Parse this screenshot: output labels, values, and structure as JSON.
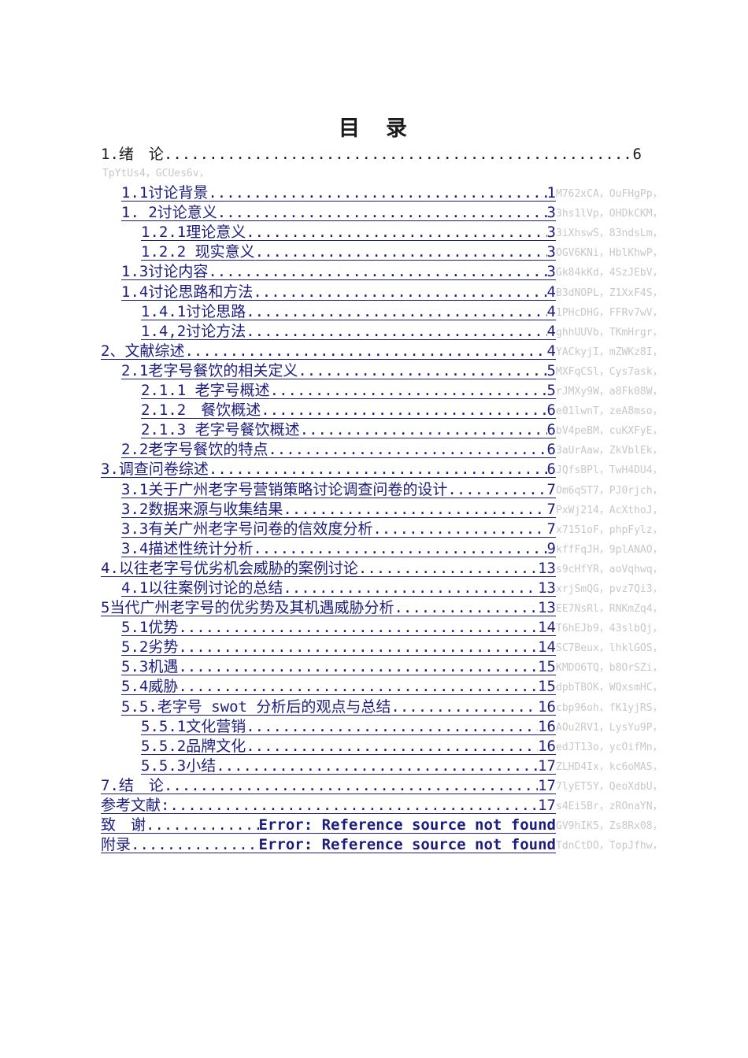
{
  "page": {
    "title": "目　录",
    "stray_text": "TpYtUs4，GCUes6v，",
    "colors": {
      "background": "#ffffff",
      "heading_text": "#1b1b1b",
      "toc_link": "#1c1c7e",
      "watermark_text": "#c8c8c8"
    }
  },
  "toc": {
    "top_entry": {
      "text": "1.绪　论",
      "page": "6"
    },
    "entries": [
      {
        "level": 2,
        "text": "1.1讨论背景",
        "page": "1",
        "gray": "M762xCA，OuFHgPp，"
      },
      {
        "level": 2,
        "text": "1. 2讨论意义",
        "page": "3",
        "gray": "3hs1lVp，OHDkCKM，"
      },
      {
        "level": 3,
        "text": "1.2.1理论意义",
        "page": "3",
        "gray": "3iXhswS，83ndsLm，"
      },
      {
        "level": 3,
        "text": "1.2.2 现实意义",
        "page": "3",
        "gray": "OGV6KNi，HblKhwP，"
      },
      {
        "level": 2,
        "text": "1.3讨论内容",
        "page": "3",
        "gray": "Gk84kKd，4SzJEbV，"
      },
      {
        "level": 2,
        "text": "1.4讨论思路和方法",
        "page": "4",
        "gray": "B3dNOPL，Z1XxF4S，"
      },
      {
        "level": 3,
        "text": "1.4.1讨论思路",
        "page": "4",
        "gray": "1PHcDHG，FFRv7wV，"
      },
      {
        "level": 3,
        "text": "1.4,2讨论方法",
        "page": "4",
        "gray": "ghhUUVb，TKmHrgr，"
      },
      {
        "level": 1,
        "text": "2、文献综述",
        "page": "4",
        "gray": "YACkyjI，mZWKz8I，"
      },
      {
        "level": 2,
        "text": "2.1老字号餐饮的相关定义",
        "page": "5",
        "gray": "MXFqCSl，Cys7ask，"
      },
      {
        "level": 3,
        "text": "2.1.1 老字号概述",
        "page": "5",
        "gray": "rJMXy9W，a8Fk08W，"
      },
      {
        "level": 3,
        "text": "2.1.2　餐饮概述",
        "page": "6",
        "gray": "e01lwnT，zeA8mso，"
      },
      {
        "level": 3,
        "text": "2.1.3 老字号餐饮概述",
        "page": "6",
        "gray": "bV4peBM，cuKXFyE，"
      },
      {
        "level": 2,
        "text": "2.2老字号餐饮的特点",
        "page": "6",
        "gray": "3aUrAaw，ZkVblEk，"
      },
      {
        "level": 1,
        "text": "3.调查问卷综述",
        "page": "6",
        "gray": "JQfsBPl，TwH4DU4，"
      },
      {
        "level": 2,
        "text": "3.1关于广州老字号营销策略讨论调查问卷的设计",
        "page": "7",
        "gray": "Om6qST7，PJ0rjch，"
      },
      {
        "level": 2,
        "text": "3.2数据来源与收集结果",
        "page": "7",
        "gray": "PxWj214，AcXthoJ，"
      },
      {
        "level": 2,
        "text": "3.3有关广州老字号问卷的信效度分析",
        "page": "7",
        "gray": "x7151oF，phpFylz，"
      },
      {
        "level": 2,
        "text": "3.4描述性统计分析",
        "page": "9",
        "gray": "kffFqJH，9plANAO，"
      },
      {
        "level": 1,
        "text": "4.以往老字号优劣机会威胁的案例讨论",
        "page": "13",
        "gray": "s9cHfYR，aoVqhwq，"
      },
      {
        "level": 2,
        "text": "4.1以往案例讨论的总结",
        "page": "13",
        "gray": "xrjSmQG，pvz7Qi3，"
      },
      {
        "level": 1,
        "text": "5当代广州老字号的优劣势及其机遇威胁分析",
        "page": "13",
        "gray": "EE7NsRl，RNKmZq4，"
      },
      {
        "level": 2,
        "text": "5.1优势",
        "page": "14",
        "gray": "T6hEJb9，43slbQj，"
      },
      {
        "level": 2,
        "text": "5.2劣势",
        "page": "14",
        "gray": "SC7Beux，lhklGOS，"
      },
      {
        "level": 2,
        "text": "5.3机遇",
        "page": "15",
        "gray": "KMDO6TQ，b8OrSZi，"
      },
      {
        "level": 2,
        "text": "5.4威胁",
        "page": "15",
        "gray": "dpbTBOK，WQxsmHC，"
      },
      {
        "level": 2,
        "text": "5.5.老字号 swot 分析后的观点与总结",
        "page": "16",
        "gray": "cbp96oh，fK1yjRS，"
      },
      {
        "level": 3,
        "text": "5.5.1文化营销",
        "page": "16",
        "gray": "AOu2RV1，LysYu9P，"
      },
      {
        "level": 3,
        "text": "5.5.2品牌文化",
        "page": "16",
        "gray": "edJT13o，ycOifMn，"
      },
      {
        "level": 3,
        "text": "5.5.3小结",
        "page": "17",
        "gray": "ZLHD4Ix，kc6oMAS，"
      },
      {
        "level": 1,
        "text": "7.结　论",
        "page": "17",
        "gray": "7lyET5Y，QeoXdbU，"
      },
      {
        "level": 1,
        "text": "参考文献:",
        "page": "17",
        "gray": "s4Ei5Br，zROnaYN，"
      },
      {
        "level": 1,
        "text": "致　谢",
        "page": "Error: Reference source not found",
        "error": true,
        "gray": "GV9hIK5，Zs8Rx08，"
      },
      {
        "level": 1,
        "text": "附录 ",
        "page": "Error: Reference source not found",
        "error": true,
        "gray": "TdnCtDO，TopJfhw，"
      }
    ]
  }
}
